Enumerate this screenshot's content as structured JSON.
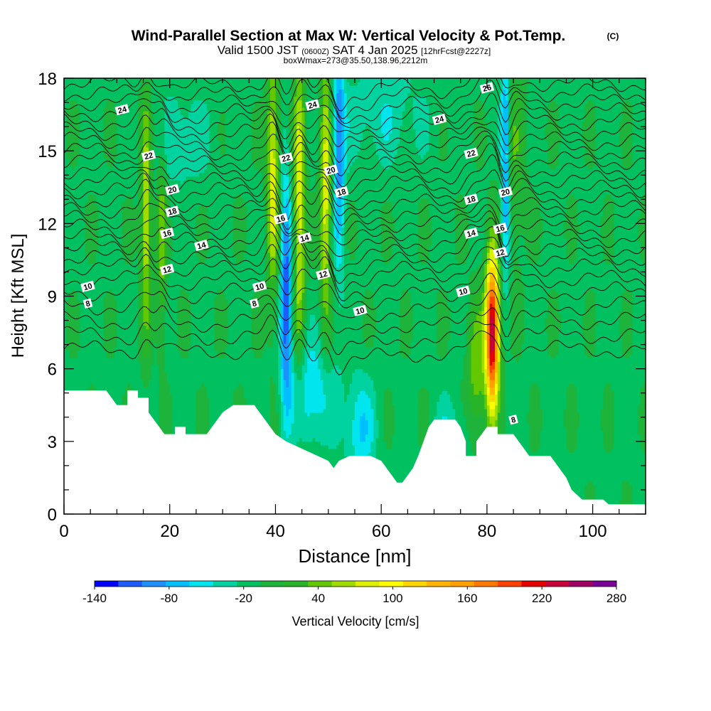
{
  "title": {
    "main": "Wind-Parallel Section at Max W: Vertical Velocity & Pot.Temp.",
    "copyright": "(C)",
    "valid_prefix": "Valid 1500 JST",
    "valid_utc": "(0600Z)",
    "valid_date": "SAT 4 Jan 2025",
    "forecast": "[12hrFcst@2227z]",
    "box_info": "boxWmax=273@35.50,138.96,2212m"
  },
  "chart_data": {
    "type": "heatmap",
    "xlabel": "Distance [nm]",
    "ylabel": "Height [Kft MSL]",
    "xlim": [
      0,
      110
    ],
    "ylim": [
      0,
      18
    ],
    "x_ticks": [
      0,
      20,
      40,
      60,
      80,
      100
    ],
    "y_ticks": [
      0,
      3,
      6,
      9,
      12,
      15,
      18
    ],
    "grid": false,
    "background_value_cm_s": -5,
    "colorbar": {
      "label": "Vertical Velocity [cm/s]",
      "tick_labels": [
        "-140",
        "-80",
        "-20",
        "40",
        "100",
        "160",
        "220",
        "280"
      ],
      "levels": [
        -140,
        -120,
        -100,
        -80,
        -60,
        -40,
        -20,
        0,
        20,
        40,
        60,
        80,
        100,
        120,
        140,
        160,
        180,
        200,
        220,
        240,
        260,
        280
      ],
      "colors": [
        "#0000ff",
        "#1e5cff",
        "#1e90ff",
        "#00bfff",
        "#00e5ee",
        "#00d2a0",
        "#00c060",
        "#1eb43c",
        "#28b428",
        "#64c800",
        "#a0dc00",
        "#dcf000",
        "#ffff00",
        "#ffd700",
        "#ffb400",
        "#ffa000",
        "#ff7800",
        "#ff4000",
        "#e60000",
        "#c8003c",
        "#a00064",
        "#780096"
      ]
    },
    "terrain_kft": [
      [
        0,
        5.1
      ],
      [
        8,
        5.1
      ],
      [
        9,
        4.8
      ],
      [
        10,
        4.5
      ],
      [
        12,
        4.5
      ],
      [
        12,
        5.1
      ],
      [
        14,
        5.1
      ],
      [
        14,
        4.8
      ],
      [
        16,
        4.8
      ],
      [
        16,
        4.2
      ],
      [
        17,
        3.9
      ],
      [
        18,
        3.6
      ],
      [
        19,
        3.3
      ],
      [
        21,
        3.3
      ],
      [
        21,
        3.6
      ],
      [
        23,
        3.6
      ],
      [
        23,
        3.3
      ],
      [
        27,
        3.3
      ],
      [
        28,
        3.6
      ],
      [
        29,
        3.9
      ],
      [
        30,
        4.2
      ],
      [
        32,
        4.5
      ],
      [
        36,
        4.5
      ],
      [
        37,
        4.2
      ],
      [
        38,
        3.9
      ],
      [
        39,
        3.6
      ],
      [
        40,
        3.3
      ],
      [
        42,
        3.0
      ],
      [
        44,
        2.8
      ],
      [
        46,
        2.6
      ],
      [
        48,
        2.4
      ],
      [
        50,
        2.2
      ],
      [
        51,
        1.9
      ],
      [
        52,
        2.2
      ],
      [
        54,
        2.4
      ],
      [
        56,
        2.4
      ],
      [
        58,
        2.4
      ],
      [
        60,
        2.2
      ],
      [
        61,
        1.9
      ],
      [
        62,
        1.6
      ],
      [
        63,
        1.3
      ],
      [
        64,
        1.3
      ],
      [
        65,
        1.6
      ],
      [
        66,
        1.9
      ],
      [
        67,
        2.4
      ],
      [
        68,
        3.0
      ],
      [
        69,
        3.6
      ],
      [
        70,
        3.9
      ],
      [
        74,
        3.9
      ],
      [
        75,
        3.6
      ],
      [
        76,
        3.0
      ],
      [
        76,
        2.4
      ],
      [
        78,
        2.4
      ],
      [
        78,
        3.0
      ],
      [
        79,
        3.3
      ],
      [
        80,
        3.6
      ],
      [
        82,
        3.6
      ],
      [
        82,
        3.3
      ],
      [
        85,
        3.3
      ],
      [
        86,
        3.0
      ],
      [
        87,
        2.7
      ],
      [
        88,
        2.4
      ],
      [
        92,
        2.4
      ],
      [
        93,
        2.1
      ],
      [
        94,
        1.8
      ],
      [
        95,
        1.5
      ],
      [
        96,
        1.0
      ],
      [
        98,
        0.6
      ],
      [
        102,
        0.6
      ],
      [
        103,
        0.4
      ],
      [
        110,
        0.4
      ]
    ],
    "features": [
      {
        "kind": "updraft",
        "x": 81,
        "y": 7.5,
        "sx": 0.9,
        "sy": 2.2,
        "peak": 273
      },
      {
        "kind": "updraft",
        "x": 15.5,
        "y": 12.5,
        "sx": 0.7,
        "sy": 3.5,
        "peak": 90
      },
      {
        "kind": "updraft",
        "x": 18.5,
        "y": 11.5,
        "sx": 0.6,
        "sy": 3.0,
        "peak": 60
      },
      {
        "kind": "updraft",
        "x": 39.5,
        "y": 14.0,
        "sx": 0.8,
        "sy": 3.5,
        "peak": 100
      },
      {
        "kind": "updraft",
        "x": 44.5,
        "y": 13.0,
        "sx": 0.8,
        "sy": 4.5,
        "peak": 100
      },
      {
        "kind": "updraft",
        "x": 49.5,
        "y": 13.5,
        "sx": 0.8,
        "sy": 4.0,
        "peak": 100
      },
      {
        "kind": "updraft",
        "x": 78.0,
        "y": 6.0,
        "sx": 1.2,
        "sy": 2.0,
        "peak": 60
      },
      {
        "kind": "updraft",
        "x": 85.0,
        "y": 15.0,
        "sx": 1.5,
        "sy": 3.0,
        "peak": 40
      },
      {
        "kind": "downdraft",
        "x": 42.0,
        "y": 9.0,
        "sx": 0.8,
        "sy": 3.5,
        "peak": -110
      },
      {
        "kind": "downdraft",
        "x": 52.0,
        "y": 15.0,
        "sx": 0.8,
        "sy": 3.5,
        "peak": -90
      },
      {
        "kind": "downdraft",
        "x": 83.5,
        "y": 13.0,
        "sx": 0.6,
        "sy": 2.5,
        "peak": -90
      },
      {
        "kind": "downdraft",
        "x": 83.5,
        "y": 17.0,
        "sx": 0.7,
        "sy": 1.5,
        "peak": -60
      },
      {
        "kind": "downdraft",
        "x": 47.0,
        "y": 5.0,
        "sx": 3.0,
        "sy": 1.5,
        "peak": -55
      },
      {
        "kind": "downdraft",
        "x": 56.0,
        "y": 3.5,
        "sx": 2.0,
        "sy": 1.5,
        "peak": -55
      },
      {
        "kind": "downdraft",
        "x": 73.0,
        "y": 3.0,
        "sx": 2.0,
        "sy": 1.2,
        "peak": -40
      },
      {
        "kind": "downdraft",
        "x": 60.0,
        "y": 16.5,
        "sx": 6.0,
        "sy": 1.5,
        "peak": -30
      },
      {
        "kind": "downdraft",
        "x": 22.0,
        "y": 15.5,
        "sx": 4.0,
        "sy": 1.5,
        "peak": -30
      }
    ],
    "theta_contour_labels": [
      {
        "text": "24",
        "x": 11,
        "y": 16.7
      },
      {
        "text": "22",
        "x": 16,
        "y": 14.8
      },
      {
        "text": "20",
        "x": 20.5,
        "y": 13.4
      },
      {
        "text": "18",
        "x": 20.5,
        "y": 12.5
      },
      {
        "text": "16",
        "x": 19.5,
        "y": 11.6
      },
      {
        "text": "14",
        "x": 26,
        "y": 11.1
      },
      {
        "text": "12",
        "x": 19.5,
        "y": 10.1
      },
      {
        "text": "10",
        "x": 4.5,
        "y": 9.4
      },
      {
        "text": "8",
        "x": 4.5,
        "y": 8.7
      },
      {
        "text": "24",
        "x": 47,
        "y": 16.9
      },
      {
        "text": "22",
        "x": 42,
        "y": 14.7
      },
      {
        "text": "20",
        "x": 50.5,
        "y": 14.2
      },
      {
        "text": "18",
        "x": 52.5,
        "y": 13.3
      },
      {
        "text": "16",
        "x": 41,
        "y": 12.2
      },
      {
        "text": "14",
        "x": 45.5,
        "y": 11.4
      },
      {
        "text": "12",
        "x": 49,
        "y": 9.9
      },
      {
        "text": "10",
        "x": 37,
        "y": 9.4
      },
      {
        "text": "8",
        "x": 36,
        "y": 8.7
      },
      {
        "text": "10",
        "x": 56,
        "y": 8.4
      },
      {
        "text": "26",
        "x": 80,
        "y": 17.6
      },
      {
        "text": "24",
        "x": 71,
        "y": 16.3
      },
      {
        "text": "22",
        "x": 77,
        "y": 14.9
      },
      {
        "text": "20",
        "x": 83.5,
        "y": 13.3
      },
      {
        "text": "18",
        "x": 77,
        "y": 13.0
      },
      {
        "text": "16",
        "x": 82.5,
        "y": 11.8
      },
      {
        "text": "14",
        "x": 77,
        "y": 11.6
      },
      {
        "text": "12",
        "x": 82.5,
        "y": 10.8
      },
      {
        "text": "10",
        "x": 75.5,
        "y": 9.2
      },
      {
        "text": "8",
        "x": 85,
        "y": 3.9
      }
    ]
  }
}
